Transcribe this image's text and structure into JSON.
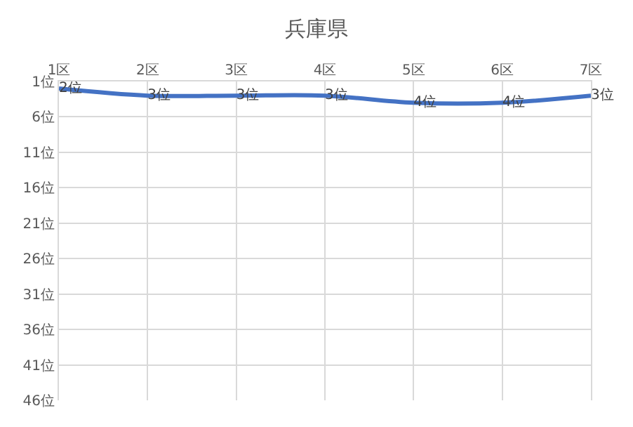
{
  "chart_data": {
    "type": "line",
    "title": "兵庫県",
    "categories": [
      "1区",
      "2区",
      "3区",
      "4区",
      "5区",
      "6区",
      "7区"
    ],
    "series": [
      {
        "color": "#4472c4",
        "values": [
          2,
          3,
          3,
          3,
          4,
          4,
          3
        ],
        "value_labels": [
          "2位",
          "3位",
          "3位",
          "3位",
          "4位",
          "4位",
          "3位"
        ]
      }
    ],
    "ylim": [
      46,
      1
    ],
    "yticks": [
      {
        "value": 1,
        "label": "1位"
      },
      {
        "value": 6,
        "label": "6位"
      },
      {
        "value": 11,
        "label": "11位"
      },
      {
        "value": 16,
        "label": "16位"
      },
      {
        "value": 21,
        "label": "21位"
      },
      {
        "value": 26,
        "label": "26位"
      },
      {
        "value": 31,
        "label": "31位"
      },
      {
        "value": 36,
        "label": "36位"
      },
      {
        "value": 41,
        "label": "41位"
      },
      {
        "value": 46,
        "label": "46位"
      }
    ],
    "grid": true,
    "marker": "none",
    "line_style": "solid",
    "legend": false
  }
}
